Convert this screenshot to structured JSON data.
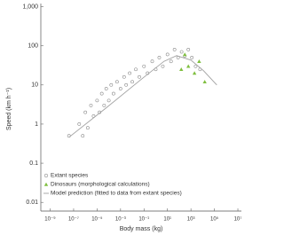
{
  "chart_data": {
    "type": "scatter",
    "xlabel": "Body mass (kg)",
    "ylabel": "Speed (km h⁻¹)",
    "xscale": "log",
    "yscale": "log",
    "xlim": [
      1.6e-10,
      20000000.0
    ],
    "ylim": [
      0.006,
      1200
    ],
    "xticks": [
      {
        "value": 1e-09,
        "label": "10⁻⁹"
      },
      {
        "value": 1e-07,
        "label": "10⁻⁷"
      },
      {
        "value": 1e-05,
        "label": "10⁻⁵"
      },
      {
        "value": 0.001,
        "label": "10⁻³"
      },
      {
        "value": 0.1,
        "label": "10⁻¹"
      },
      {
        "value": 10,
        "label": "10¹"
      },
      {
        "value": 1000,
        "label": "10³"
      },
      {
        "value": 100000,
        "label": "10⁵"
      },
      {
        "value": 10000000,
        "label": "10⁷"
      }
    ],
    "yticks": [
      0.01,
      0.1,
      1,
      10,
      100,
      {
        "value": 1000,
        "label": "1,000"
      }
    ],
    "legend": "lower left",
    "series": [
      {
        "name": "Extant species",
        "marker": "circle",
        "color": "#8a8a8a",
        "x": [
          4e-08,
          3e-07,
          6e-07,
          1e-06,
          1.6e-06,
          3e-06,
          5e-06,
          1e-05,
          1.6e-05,
          2.5e-05,
          4e-05,
          6e-05,
          0.0001,
          0.00016,
          0.00025,
          0.0005,
          0.001,
          0.002,
          0.003,
          0.006,
          0.01,
          0.02,
          0.04,
          0.1,
          0.2,
          0.5,
          1,
          2,
          4,
          10,
          20,
          40,
          80,
          160,
          300,
          600,
          1200,
          2500,
          6000
        ],
        "values": [
          0.5,
          1,
          0.5,
          2,
          0.8,
          3,
          1.6,
          4,
          2,
          6,
          3,
          8,
          4,
          10,
          6,
          12,
          8,
          16,
          10,
          20,
          12,
          25,
          16,
          30,
          20,
          40,
          25,
          50,
          30,
          60,
          40,
          80,
          50,
          70,
          55,
          80,
          50,
          30,
          25
        ]
      },
      {
        "name": "Dinosaurs (morphological calculations)",
        "marker": "triangle",
        "color": "#7fbf3f",
        "x": [
          150,
          300,
          600,
          2000,
          5000,
          15000
        ],
        "values": [
          25,
          60,
          30,
          20,
          40,
          12
        ]
      },
      {
        "name": "Model prediction (fitted to data from extant species)",
        "marker": "line",
        "color": "#a0a0a0",
        "x": [
          4e-08,
          6e-05,
          0.06,
          5,
          60,
          1000,
          12000,
          160000
        ],
        "values": [
          0.46,
          2.6,
          14,
          40,
          56,
          43,
          23,
          10
        ]
      }
    ]
  }
}
